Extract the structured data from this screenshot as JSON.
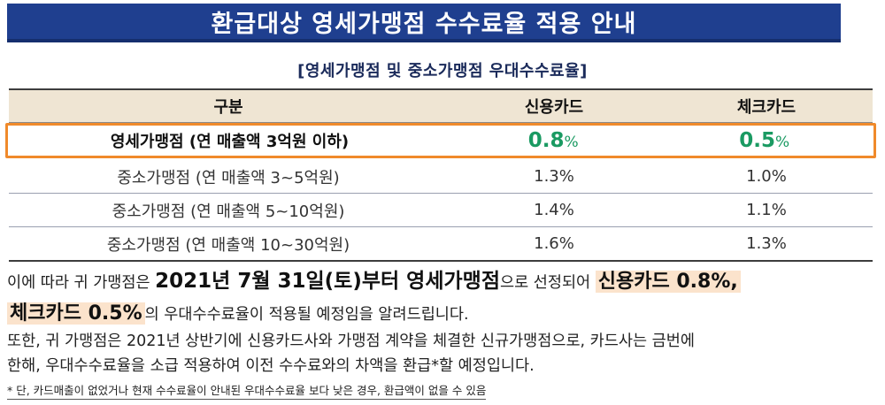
{
  "banner_title": "환급대상 영세가맹점 수수료율 적용 안내",
  "table_title": "[영세가맹점 및 중소가맹점 우대수수료율]",
  "table": {
    "headers": [
      "구분",
      "신용카드",
      "체크카드"
    ],
    "highlight_row": {
      "label": "영세가맹점 (연 매출액 3억원 이하)",
      "credit_value": "0.8",
      "credit_unit": "%",
      "check_value": "0.5",
      "check_unit": "%"
    },
    "rows": [
      {
        "label": "중소가맹점 (연 매출액 3~5억원)",
        "credit": "1.3%",
        "check": "1.0%"
      },
      {
        "label": "중소가맹점 (연 매출액 5~10억원)",
        "credit": "1.4%",
        "check": "1.1%"
      },
      {
        "label": "중소가맹점 (연 매출액 10~30억원)",
        "credit": "1.6%",
        "check": "1.3%"
      }
    ]
  },
  "body": {
    "p1_a": "이에 따라 귀 가맹점은 ",
    "p1_b": "2021년 7월 31일(토)부터 영세가맹점",
    "p1_c": "으로 선정되어 ",
    "p1_d": "신용카드 0.8%,",
    "p2_a": "체크카드 0.5%",
    "p2_b": "의 우대수수료율이 적용될 예정임을 알려드립니다.",
    "p3": "또한, 귀 가맹점은 2021년 상반기에 신용카드사와 가맹점 계약을 체결한 신규가맹점으로, 카드사는 금번에",
    "p4": "한해, 우대수수료율을 소급 적용하여 이전 수수료와의 차액을 환급*할 예정입니다."
  },
  "footnote": "* 단, 카드매출이 없었거나 현재 수수료율이 안내된 우대수수료율 보다 낮은 경우, 환급액이 없을 수 있음"
}
